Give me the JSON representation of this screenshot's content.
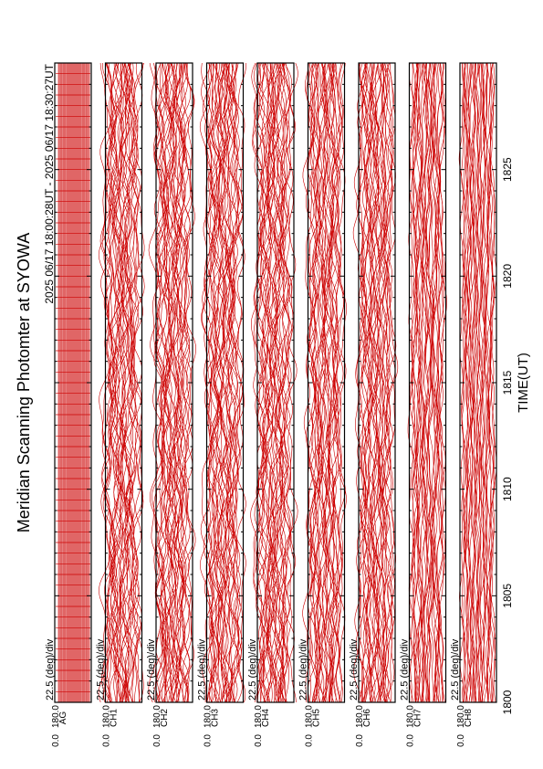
{
  "title": "Meridian Scanning Photomter at SYOWA",
  "time_range": "2025 06/17 18:00:28UT - 2025 06/17 18:30:27UT",
  "xlabel": "TIME(UT)",
  "colors": {
    "trace": "#cc0000",
    "frame": "#000000"
  },
  "chart_data": {
    "type": "line",
    "title": "Meridian Scanning Photomter at SYOWA",
    "xlabel": "TIME(UT)",
    "x_ticks": [
      "1800",
      "1805",
      "1810",
      "1815",
      "1820",
      "1825"
    ],
    "x_tick_values": [
      0,
      5,
      10,
      15,
      20,
      25
    ],
    "xlim": [
      0,
      30
    ],
    "ylim": [
      0.0,
      180.0
    ],
    "grid": false,
    "panels": [
      {
        "name": "AG",
        "scale_label": "22.5 (deg)/div",
        "y_top_label": "180.0",
        "y_bottom_label": "0.0",
        "traces": 34,
        "amplitude": 0.0,
        "regular": true
      },
      {
        "name": "CH1",
        "scale_label": "22.5 (deg)/div",
        "y_top_label": "180.0",
        "y_bottom_label": "0.0",
        "traces": 34,
        "amplitude": 1.0,
        "regular": false
      },
      {
        "name": "CH2",
        "scale_label": "22.5 (deg)/div",
        "y_top_label": "180.0",
        "y_bottom_label": "0.0",
        "traces": 34,
        "amplitude": 1.0,
        "regular": false
      },
      {
        "name": "CH3",
        "scale_label": "22.5 (deg)/div",
        "y_top_label": "180.0",
        "y_bottom_label": "0.0",
        "traces": 34,
        "amplitude": 1.0,
        "regular": false
      },
      {
        "name": "CH4",
        "scale_label": "22.5 (deg)/div",
        "y_top_label": "180.0",
        "y_bottom_label": "0.0",
        "traces": 34,
        "amplitude": 1.0,
        "regular": false
      },
      {
        "name": "CH5",
        "scale_label": "22.5 (deg)/div",
        "y_top_label": "180.0",
        "y_bottom_label": "0.0",
        "traces": 34,
        "amplitude": 0.8,
        "regular": false
      },
      {
        "name": "CH6",
        "scale_label": "22.5 (deg)/div",
        "y_top_label": "180.0",
        "y_bottom_label": "0.0",
        "traces": 34,
        "amplitude": 0.8,
        "regular": false
      },
      {
        "name": "CH7",
        "scale_label": "22.5 (deg)/div",
        "y_top_label": "180.0",
        "y_bottom_label": "0.0",
        "traces": 34,
        "amplitude": 0.5,
        "regular": false
      },
      {
        "name": "CH8",
        "scale_label": "22.5 (deg)/div",
        "y_top_label": "180.0",
        "y_bottom_label": "0.0",
        "traces": 34,
        "amplitude": 0.4,
        "regular": false
      }
    ]
  }
}
